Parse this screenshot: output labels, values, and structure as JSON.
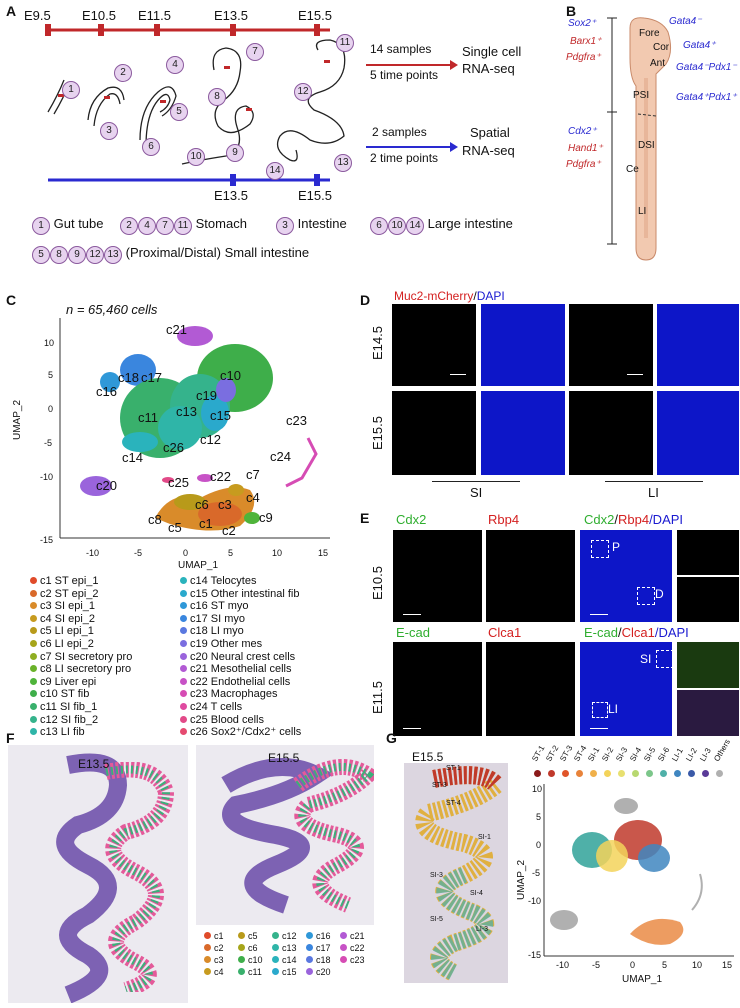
{
  "panels": {
    "A": {
      "label": "A",
      "timepoints": [
        "E9.5",
        "E10.5",
        "E11.5",
        "E13.5",
        "E15.5"
      ],
      "spatial_timepoints": [
        "E13.5",
        "E15.5"
      ],
      "sc_top": "14 samples",
      "sc_bot": "5 time points",
      "sc_r1": "Single cell",
      "sc_r2": "RNA-seq",
      "sp_top": "2 samples",
      "sp_bot": "2 time points",
      "sp_r1": "Spatial",
      "sp_r2": "RNA-seq",
      "circle_nums": [
        "1",
        "2",
        "3",
        "4",
        "5",
        "6",
        "7",
        "8",
        "9",
        "10",
        "11",
        "12",
        "13",
        "14"
      ],
      "legend": {
        "gut_tube": "Gut tube",
        "stomach": "Stomach",
        "intestine": "Intestine",
        "large": "Large intestine",
        "small": "(Proximal/Distal) Small intestine"
      }
    },
    "B": {
      "label": "B",
      "left_top": [
        "Sox2⁺",
        "Barx1⁺",
        "Pdgfra⁺"
      ],
      "left_bot": [
        "Cdx2⁺",
        "Hand1⁺",
        "Pdgfra⁺"
      ],
      "right": [
        "Gata4⁻",
        "Gata4⁺",
        "Gata4⁻Pdx1⁻",
        "Gata4⁺Pdx1⁺"
      ],
      "regions": [
        "Fore",
        "Cor",
        "Ant",
        "PSI",
        "DSI",
        "Ce",
        "LI"
      ]
    },
    "C": {
      "label": "C",
      "ncells": "n = 65,460 cells",
      "xlabel": "UMAP_1",
      "ylabel": "UMAP_2",
      "xticks": [
        "-10",
        "-5",
        "0",
        "5",
        "10",
        "15"
      ],
      "yticks": [
        "10",
        "5",
        "0",
        "-5",
        "-10",
        "-15"
      ],
      "cluster_labels": [
        "c21",
        "c18",
        "c17",
        "c16",
        "c10",
        "c19",
        "c13",
        "c15",
        "c11",
        "c12",
        "c26",
        "c14",
        "c23",
        "c24",
        "c20",
        "c22",
        "c7",
        "c25",
        "c6",
        "c3",
        "c4",
        "c8",
        "c5",
        "c1",
        "c2",
        "c9"
      ],
      "legend": [
        {
          "id": "c1",
          "name": "ST epi_1",
          "color": "#e04b2a"
        },
        {
          "id": "c2",
          "name": "ST epi_2",
          "color": "#d9692a"
        },
        {
          "id": "c3",
          "name": "SI epi_1",
          "color": "#d98b2a"
        },
        {
          "id": "c4",
          "name": "SI epi_2",
          "color": "#c79b1f"
        },
        {
          "id": "c5",
          "name": "LI epi_1",
          "color": "#b89a1a"
        },
        {
          "id": "c6",
          "name": "LI epi_2",
          "color": "#a6a51a"
        },
        {
          "id": "c7",
          "name": "SI secretory pro",
          "color": "#8fae22"
        },
        {
          "id": "c8",
          "name": "LI secretory pro",
          "color": "#6ab22a"
        },
        {
          "id": "c9",
          "name": "Liver epi",
          "color": "#4fb43a"
        },
        {
          "id": "c10",
          "name": "ST fib",
          "color": "#3eae4a"
        },
        {
          "id": "c11",
          "name": "SI fib_1",
          "color": "#39b06c"
        },
        {
          "id": "c12",
          "name": "SI fib_2",
          "color": "#35b38c"
        },
        {
          "id": "c13",
          "name": "LI fib",
          "color": "#2fb5a8"
        },
        {
          "id": "c14",
          "name": "Telocytes",
          "color": "#2ab3bc"
        },
        {
          "id": "c15",
          "name": "Other intestinal fib",
          "color": "#2aa9cc"
        },
        {
          "id": "c16",
          "name": "ST myo",
          "color": "#2f98d8"
        },
        {
          "id": "c17",
          "name": "SI myo",
          "color": "#3a86de"
        },
        {
          "id": "c18",
          "name": "LI myo",
          "color": "#5a78e0"
        },
        {
          "id": "c19",
          "name": "Other mes",
          "color": "#7a6ee0"
        },
        {
          "id": "c20",
          "name": "Neural crest cells",
          "color": "#9a64dc"
        },
        {
          "id": "c21",
          "name": "Mesothelial cells",
          "color": "#b25ad4"
        },
        {
          "id": "c22",
          "name": "Endothelial cells",
          "color": "#c752c6"
        },
        {
          "id": "c23",
          "name": "Macrophages",
          "color": "#d64cb4"
        },
        {
          "id": "c24",
          "name": "T cells",
          "color": "#df4aa0"
        },
        {
          "id": "c25",
          "name": "Blood cells",
          "color": "#e24a88"
        },
        {
          "id": "c26",
          "name": "Sox2⁺/Cdx2⁺ cells",
          "color": "#e54a70"
        }
      ]
    },
    "D": {
      "label": "D",
      "title_red": "Muc2-mCherry",
      "title_sep": "/",
      "title_blue": "DAPI",
      "rows": [
        "E14.5",
        "E15.5"
      ],
      "cols": [
        "SI",
        "LI"
      ]
    },
    "E": {
      "label": "E",
      "r1_labels": [
        "Cdx2",
        "Rbp4"
      ],
      "r1_merge": [
        "Cdx2",
        "/",
        "Rbp4",
        "/DAPI"
      ],
      "r2_labels": [
        "E-cad",
        "Clca1"
      ],
      "r2_merge": [
        "E-cad",
        "/",
        "Clca1",
        "/DAPI"
      ],
      "rows": [
        "E10.5",
        "E11.5"
      ],
      "boxes": [
        "P",
        "D",
        "SI",
        "LI"
      ]
    },
    "F": {
      "label": "F",
      "stages": [
        "E13.5",
        "E15.5"
      ],
      "legend": [
        "c1",
        "c2",
        "c3",
        "c4",
        "c5",
        "c6",
        "c10",
        "c11",
        "c12",
        "c13",
        "c14",
        "c15",
        "c16",
        "c17",
        "c18",
        "c20",
        "c21",
        "c22",
        "c23"
      ]
    },
    "G": {
      "label": "G",
      "stage": "E15.5",
      "xlabel": "UMAP_1",
      "ylabel": "UMAP_2",
      "xticks": [
        "-10",
        "-5",
        "0",
        "5",
        "10",
        "15"
      ],
      "yticks": [
        "10",
        "5",
        "0",
        "-5",
        "-10",
        "-15"
      ],
      "legend": [
        {
          "name": "ST-1",
          "color": "#8b1a1a"
        },
        {
          "name": "ST-2",
          "color": "#c0392b"
        },
        {
          "name": "ST-3",
          "color": "#e0552a"
        },
        {
          "name": "ST-4",
          "color": "#e8833a"
        },
        {
          "name": "SI-1",
          "color": "#f0b04a"
        },
        {
          "name": "SI-2",
          "color": "#f3d35a"
        },
        {
          "name": "SI-3",
          "color": "#e8e070"
        },
        {
          "name": "SI-4",
          "color": "#b8d870"
        },
        {
          "name": "SI-5",
          "color": "#7cc68a"
        },
        {
          "name": "SI-6",
          "color": "#4fb0a8"
        },
        {
          "name": "LI-1",
          "color": "#3f86c0"
        },
        {
          "name": "LI-2",
          "color": "#3a5aa8"
        },
        {
          "name": "LI-3",
          "color": "#5a3a98"
        },
        {
          "name": "Others",
          "color": "#b0b0b0"
        }
      ],
      "spot_labels": [
        "ST-1",
        "ST-3",
        "ST-4",
        "SI-1",
        "SI-3",
        "SI-4",
        "SI-5",
        "LI-3"
      ]
    }
  }
}
